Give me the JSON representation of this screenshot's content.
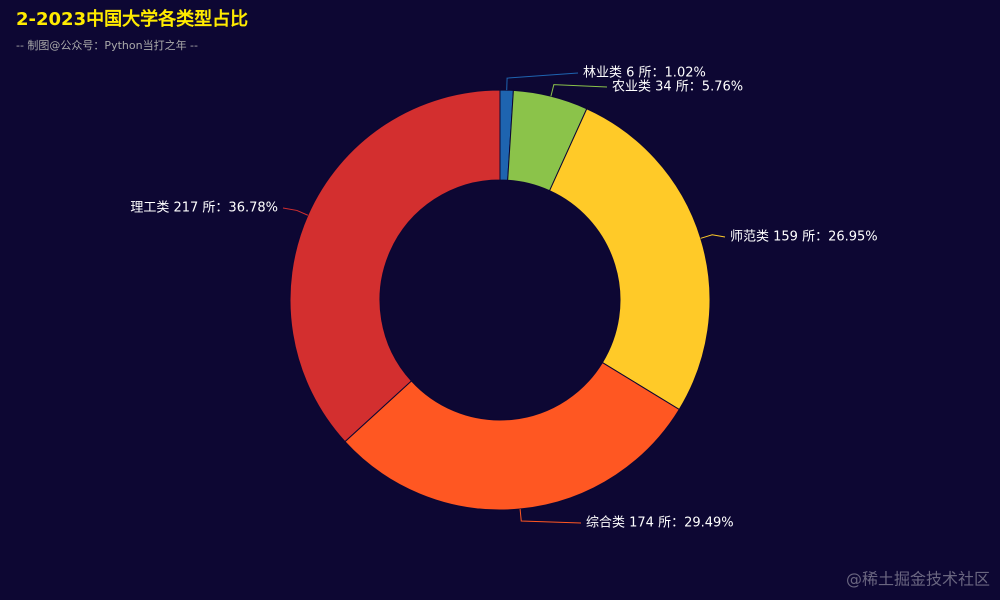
{
  "chart_data": {
    "type": "pie",
    "title": "2-2023中国大学各类型占比",
    "subtitle": "-- 制图@公众号：Python当打之年 --",
    "values": [
      6,
      34,
      159,
      174,
      217
    ],
    "value_labels": [
      "林业类 6 所：1.02%",
      "农业类 34 所：5.76%",
      "师范类 159 所：26.95%",
      "综合类 174 所：29.49%",
      "理工类 217 所：36.78%"
    ],
    "colors": [
      "#1e64b0",
      "#8bc34a",
      "#ffca28",
      "#ff5722",
      "#d32f2f"
    ],
    "watermark": "@稀土掘金技术社区"
  }
}
